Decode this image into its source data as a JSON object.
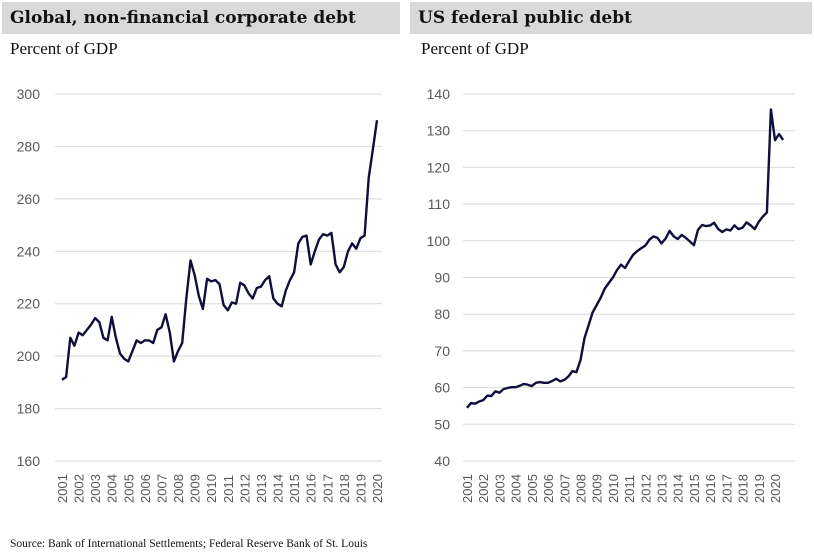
{
  "chart_data": [
    {
      "type": "line",
      "title": "Global, non-financial corporate debt",
      "ylabel": "Percent of GDP",
      "ylim": [
        160,
        300
      ],
      "yticks": [
        160,
        180,
        200,
        220,
        240,
        260,
        280,
        300
      ],
      "xticks": [
        "2001",
        "2002",
        "2003",
        "2004",
        "2005",
        "2006",
        "2007",
        "2008",
        "2009",
        "2010",
        "2011",
        "2012",
        "2013",
        "2014",
        "2015",
        "2016",
        "2017",
        "2018",
        "2019",
        "2020"
      ],
      "x_range": [
        2001,
        2020.75
      ],
      "grid": true,
      "color": "#0f0f3c",
      "values": [
        191,
        192,
        207,
        204,
        209,
        208,
        210,
        212,
        214.5,
        213,
        207,
        206,
        215,
        207,
        201,
        199,
        198,
        202,
        206,
        205,
        206,
        206,
        205,
        210,
        211,
        216,
        209,
        198,
        202,
        205,
        222,
        236.5,
        231,
        223,
        218,
        229.5,
        228.5,
        229,
        227.5,
        219.5,
        217.5,
        220.5,
        220,
        228,
        227,
        224,
        222,
        226,
        226.5,
        229,
        230.5,
        222,
        220,
        219,
        225,
        229,
        232,
        243,
        245.5,
        246,
        235,
        240,
        244.5,
        246.5,
        246,
        247,
        235,
        232,
        234,
        240,
        243,
        241,
        245,
        246,
        268,
        279,
        290
      ]
    },
    {
      "type": "line",
      "title": "US federal public debt",
      "ylabel": "Percent of GDP",
      "ylim": [
        40,
        140
      ],
      "yticks": [
        40,
        50,
        60,
        70,
        80,
        90,
        100,
        110,
        120,
        130,
        140
      ],
      "xticks": [
        "2001",
        "2002",
        "2003",
        "2004",
        "2005",
        "2006",
        "2007",
        "2008",
        "2009",
        "2010",
        "2011",
        "2012",
        "2013",
        "2014",
        "2015",
        "2016",
        "2017",
        "2018",
        "2019",
        "2020"
      ],
      "x_range": [
        2001,
        2020.75
      ],
      "grid": true,
      "color": "#0f0f3c",
      "values": [
        54.5,
        55.8,
        55.6,
        56.2,
        56.6,
        57.8,
        57.7,
        59,
        58.6,
        59.6,
        59.9,
        60.1,
        60.1,
        60.5,
        61,
        60.8,
        60.4,
        61.3,
        61.5,
        61.3,
        61.3,
        61.8,
        62.4,
        61.7,
        62.1,
        63,
        64.5,
        64.2,
        67.5,
        73.5,
        77,
        80.5,
        82.5,
        84.5,
        87,
        88.5,
        90,
        92,
        93.5,
        92.6,
        94.5,
        96.2,
        97.2,
        98,
        98.7,
        100.3,
        101.2,
        100.8,
        99.3,
        100.6,
        102.7,
        101.2,
        100.5,
        101.6,
        100.8,
        99.8,
        98.8,
        103,
        104.3,
        104,
        104.2,
        104.9,
        103.2,
        102.4,
        103.1,
        102.8,
        104.2,
        103.2,
        103.6,
        105,
        104.2,
        103.2,
        105.2,
        106.6,
        107.7,
        135.8,
        127.4,
        129.1,
        127.5
      ]
    }
  ],
  "source": "Source: Bank of International Settlements; Federal Reserve Bank of St. Louis"
}
